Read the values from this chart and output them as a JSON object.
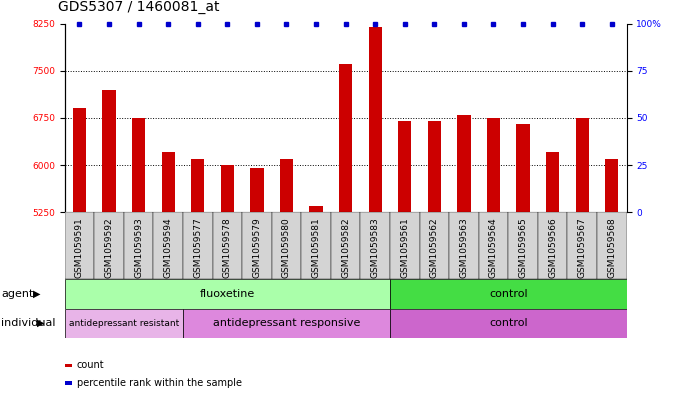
{
  "title": "GDS5307 / 1460081_at",
  "samples": [
    "GSM1059591",
    "GSM1059592",
    "GSM1059593",
    "GSM1059594",
    "GSM1059577",
    "GSM1059578",
    "GSM1059579",
    "GSM1059580",
    "GSM1059581",
    "GSM1059582",
    "GSM1059583",
    "GSM1059561",
    "GSM1059562",
    "GSM1059563",
    "GSM1059564",
    "GSM1059565",
    "GSM1059566",
    "GSM1059567",
    "GSM1059568"
  ],
  "values": [
    6900,
    7200,
    6750,
    6200,
    6100,
    6000,
    5950,
    6100,
    5350,
    7600,
    8200,
    6700,
    6700,
    6800,
    6750,
    6650,
    6200,
    6750,
    6100
  ],
  "bar_color": "#cc0000",
  "dot_color": "#0000cc",
  "ylim_left": [
    5250,
    8250
  ],
  "ylim_right": [
    0,
    100
  ],
  "yticks_left": [
    5250,
    6000,
    6750,
    7500,
    8250
  ],
  "yticks_right": [
    0,
    25,
    50,
    75,
    100
  ],
  "ytick_labels_right": [
    "0",
    "25",
    "50",
    "75",
    "100%"
  ],
  "grid_values": [
    6000,
    6750,
    7500
  ],
  "agent_groups": [
    {
      "label": "fluoxetine",
      "start": 0,
      "end": 11,
      "color": "#aaffaa"
    },
    {
      "label": "control",
      "start": 11,
      "end": 19,
      "color": "#44dd44"
    }
  ],
  "individual_groups": [
    {
      "label": "antidepressant resistant",
      "start": 0,
      "end": 4,
      "color": "#e8b4e8"
    },
    {
      "label": "antidepressant responsive",
      "start": 4,
      "end": 11,
      "color": "#dd88dd"
    },
    {
      "label": "control",
      "start": 11,
      "end": 19,
      "color": "#cc66cc"
    }
  ],
  "legend_items": [
    {
      "label": "count",
      "color": "#cc0000"
    },
    {
      "label": "percentile rank within the sample",
      "color": "#0000cc"
    }
  ],
  "background_color": "#ffffff",
  "title_fontsize": 10,
  "tick_fontsize": 6.5,
  "group_fontsize": 8
}
